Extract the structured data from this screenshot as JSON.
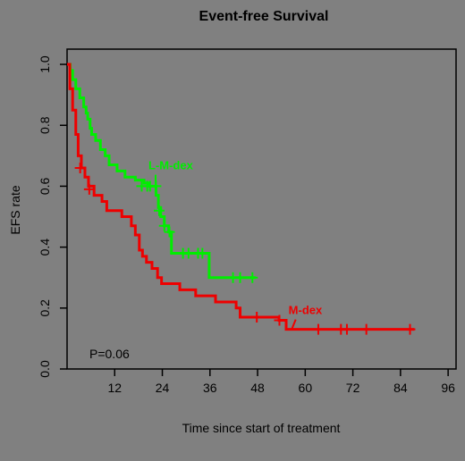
{
  "chart_data": {
    "type": "line",
    "title": "Event-free Survival",
    "xlabel": "Time since start of treatment",
    "ylabel": "EFS rate",
    "xlim": [
      0,
      98
    ],
    "ylim": [
      0,
      1.05
    ],
    "x_ticks": [
      "12",
      "24",
      "36",
      "48",
      "60",
      "72",
      "84",
      "96"
    ],
    "y_ticks": [
      "0.0",
      "0.2",
      "0.4",
      "0.6",
      "0.8",
      "1.0"
    ],
    "annotation": "P=0.06",
    "grid": false,
    "style": "step",
    "series": [
      {
        "name": "L-M-dex",
        "color": "#00ee00",
        "label_pos": [
          20.5,
          0.655
        ],
        "label_pointer_to": [
          22.3,
          0.6
        ],
        "steps": [
          [
            0,
            1.0
          ],
          [
            0.8,
            0.98
          ],
          [
            1.4,
            0.95
          ],
          [
            2.2,
            0.92
          ],
          [
            3.2,
            0.89
          ],
          [
            4.2,
            0.86
          ],
          [
            4.8,
            0.84
          ],
          [
            5.2,
            0.82
          ],
          [
            5.8,
            0.79
          ],
          [
            6.2,
            0.77
          ],
          [
            7.2,
            0.75
          ],
          [
            8.4,
            0.72
          ],
          [
            9.6,
            0.7
          ],
          [
            10.6,
            0.67
          ],
          [
            12.6,
            0.65
          ],
          [
            14.6,
            0.63
          ],
          [
            17.2,
            0.62
          ],
          [
            19.4,
            0.61
          ],
          [
            20.4,
            0.6
          ],
          [
            22.4,
            0.57
          ],
          [
            23,
            0.53
          ],
          [
            23.6,
            0.5
          ],
          [
            24.5,
            0.47
          ],
          [
            25.6,
            0.45
          ],
          [
            26.3,
            0.38
          ],
          [
            35.8,
            0.3
          ],
          [
            47.5,
            0.3
          ]
        ],
        "censored": [
          [
            18.8,
            0.6
          ],
          [
            20.2,
            0.6
          ],
          [
            20.9,
            0.6
          ],
          [
            22.4,
            0.6
          ],
          [
            23.2,
            0.52
          ],
          [
            24.5,
            0.47
          ],
          [
            25.8,
            0.45
          ],
          [
            29.2,
            0.38
          ],
          [
            30.6,
            0.38
          ],
          [
            33,
            0.38
          ],
          [
            34.1,
            0.38
          ],
          [
            41.8,
            0.3
          ],
          [
            43.6,
            0.3
          ],
          [
            46.7,
            0.3
          ]
        ]
      },
      {
        "name": "M-dex",
        "color": "#ee0000",
        "label_pos": [
          55.8,
          0.18
        ],
        "label_pointer_to": [
          56.6,
          0.13
        ],
        "steps": [
          [
            0,
            1.0
          ],
          [
            0.7,
            0.92
          ],
          [
            1.4,
            0.85
          ],
          [
            2.2,
            0.77
          ],
          [
            2.8,
            0.7
          ],
          [
            3.6,
            0.66
          ],
          [
            4.5,
            0.63
          ],
          [
            5.4,
            0.6
          ],
          [
            6.8,
            0.57
          ],
          [
            8.8,
            0.55
          ],
          [
            10,
            0.52
          ],
          [
            13.8,
            0.5
          ],
          [
            16.2,
            0.47
          ],
          [
            17.2,
            0.44
          ],
          [
            18.2,
            0.39
          ],
          [
            19,
            0.37
          ],
          [
            20,
            0.35
          ],
          [
            21.4,
            0.33
          ],
          [
            22.8,
            0.3
          ],
          [
            23.8,
            0.28
          ],
          [
            28.4,
            0.26
          ],
          [
            32.4,
            0.24
          ],
          [
            37.4,
            0.22
          ],
          [
            42.6,
            0.2
          ],
          [
            43.6,
            0.17
          ],
          [
            53.4,
            0.16
          ],
          [
            55.2,
            0.13
          ],
          [
            87.5,
            0.13
          ]
        ],
        "censored": [
          [
            3.3,
            0.66
          ],
          [
            5.6,
            0.59
          ],
          [
            47.8,
            0.17
          ],
          [
            53.5,
            0.16
          ],
          [
            63.3,
            0.13
          ],
          [
            69,
            0.13
          ],
          [
            70.5,
            0.13
          ],
          [
            75.4,
            0.13
          ],
          [
            86.4,
            0.13
          ]
        ]
      }
    ]
  }
}
